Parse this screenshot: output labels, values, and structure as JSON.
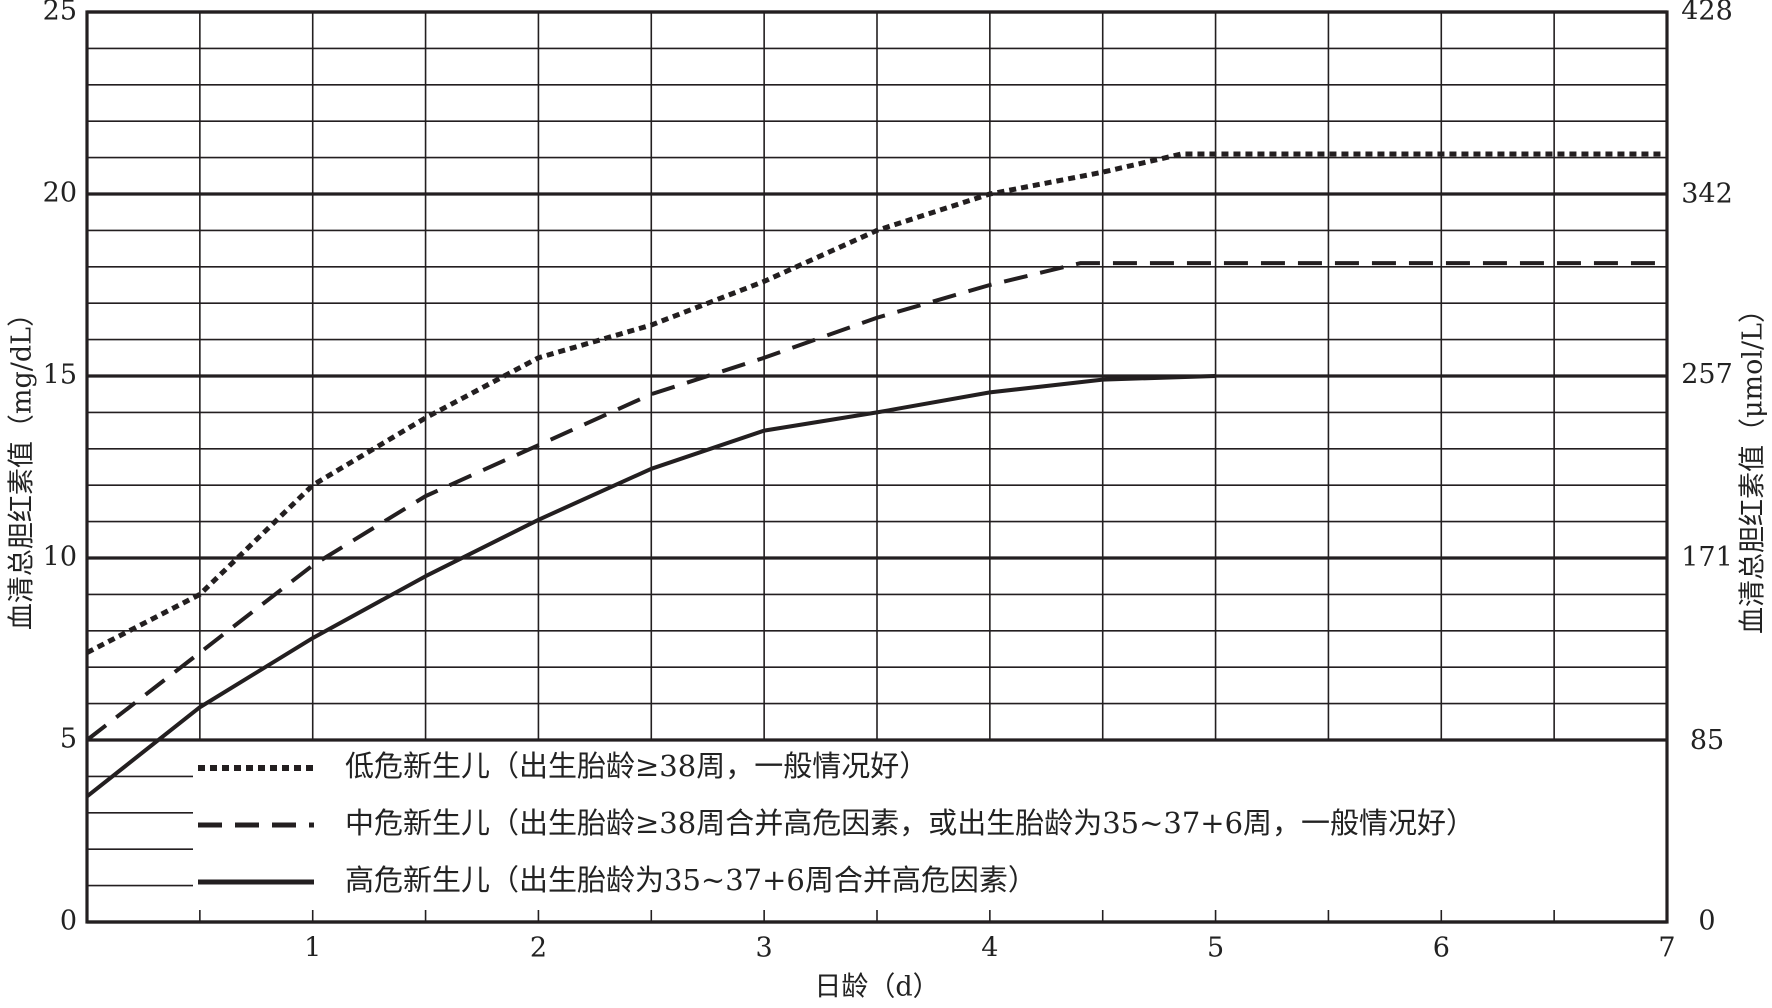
{
  "chart_data": {
    "type": "line",
    "x_label": "日龄（d）",
    "y_label": "血清总胆红素值（mg/dL）",
    "y2_label": "血清总胆红素值（μmol/L）",
    "xlim": [
      0,
      7
    ],
    "xticks": [
      1,
      2,
      3,
      4,
      5,
      6,
      7
    ],
    "x_minor_ticks": [
      0.5,
      1,
      1.5,
      2,
      2.5,
      3,
      3.5,
      4,
      4.5,
      5,
      5.5,
      6,
      6.5
    ],
    "ylim": [
      0,
      25
    ],
    "yticks": [
      0,
      5,
      10,
      15,
      20,
      25
    ],
    "y_minor_ticks": [
      1,
      2,
      3,
      4,
      6,
      7,
      8,
      9,
      11,
      12,
      13,
      14,
      16,
      17,
      18,
      19,
      21,
      22,
      23,
      24
    ],
    "y2lim": [
      0,
      428
    ],
    "y2ticks": [
      0,
      85,
      171,
      257,
      342,
      428
    ],
    "grid": true,
    "legend": "lower left",
    "series": [
      {
        "name": "低危新生儿（出生胎龄≥38周，一般情况好）",
        "color": "#231f20",
        "style": "dotted",
        "x": [
          0,
          0.5,
          1,
          1.5,
          2,
          2.5,
          3,
          3.5,
          4,
          4.5,
          4.85,
          7
        ],
        "values": [
          7.4,
          9.0,
          12.0,
          13.85,
          15.5,
          16.4,
          17.6,
          19.0,
          20.0,
          20.6,
          21.1,
          21.1
        ]
      },
      {
        "name": "中危新生儿（出生胎龄≥38周合并高危因素，或出生胎龄为35~37+6周，一般情况好）",
        "color": "#231f20",
        "style": "dashed",
        "x": [
          0,
          0.5,
          1,
          1.5,
          2,
          2.5,
          3,
          3.5,
          4,
          4.4,
          7
        ],
        "values": [
          5.0,
          7.4,
          9.8,
          11.7,
          13.1,
          14.5,
          15.5,
          16.6,
          17.5,
          18.1,
          18.1
        ]
      },
      {
        "name": "高危新生儿（出生胎龄为35~37+6周合并高危因素）",
        "color": "#231f20",
        "style": "solid",
        "x": [
          0,
          0.5,
          1,
          1.5,
          2,
          2.5,
          3,
          3.5,
          4,
          4.5,
          5
        ],
        "values": [
          3.45,
          5.9,
          7.8,
          9.5,
          11.05,
          12.45,
          13.5,
          14.0,
          14.55,
          14.9,
          15.0
        ]
      }
    ]
  }
}
